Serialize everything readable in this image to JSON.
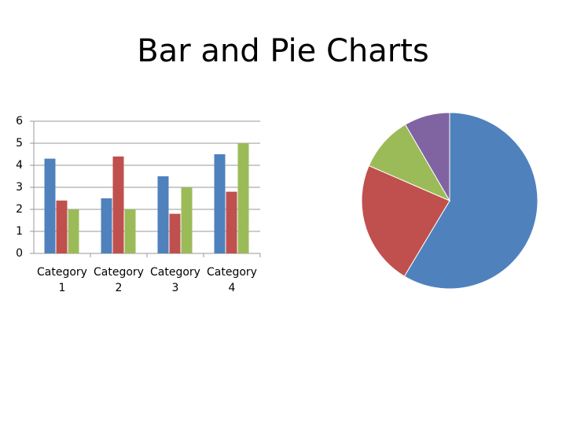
{
  "title": "Bar and Pie Charts",
  "chart_data": [
    {
      "type": "bar",
      "categories": [
        "Category 1",
        "Category 2",
        "Category 3",
        "Category 4"
      ],
      "series": [
        {
          "color": "#4f81bd",
          "values": [
            4.3,
            2.5,
            3.5,
            4.5
          ]
        },
        {
          "color": "#c0504d",
          "values": [
            2.4,
            4.4,
            1.8,
            2.8
          ]
        },
        {
          "color": "#9bbb59",
          "values": [
            2,
            2,
            3,
            5
          ]
        }
      ],
      "ylim": [
        0,
        6
      ],
      "yticks": [
        0,
        1,
        2,
        3,
        4,
        5,
        6
      ],
      "grid": true
    },
    {
      "type": "pie",
      "values": [
        58.6,
        22.9,
        10.1,
        8.4
      ],
      "colors": [
        "#4f81bd",
        "#c0504d",
        "#9bbb59",
        "#8064a2"
      ]
    }
  ]
}
